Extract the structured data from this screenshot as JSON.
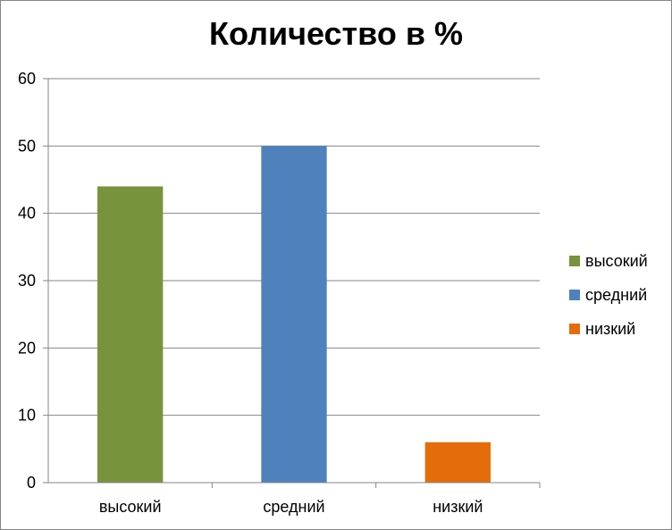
{
  "chart_data": {
    "type": "bar",
    "title": "Количество в %",
    "categories": [
      "высокий",
      "средний",
      "низкий"
    ],
    "values": [
      44,
      50,
      6
    ],
    "colors": [
      "#77933C",
      "#4F81BD",
      "#E46C0A"
    ],
    "ylim": [
      0,
      60
    ],
    "y_ticks": [
      0,
      10,
      20,
      30,
      40,
      50,
      60
    ],
    "grid": true,
    "legend": {
      "position": "right",
      "entries": [
        "высокий",
        "средний",
        "низкий"
      ]
    },
    "xlabel": "",
    "ylabel": ""
  }
}
